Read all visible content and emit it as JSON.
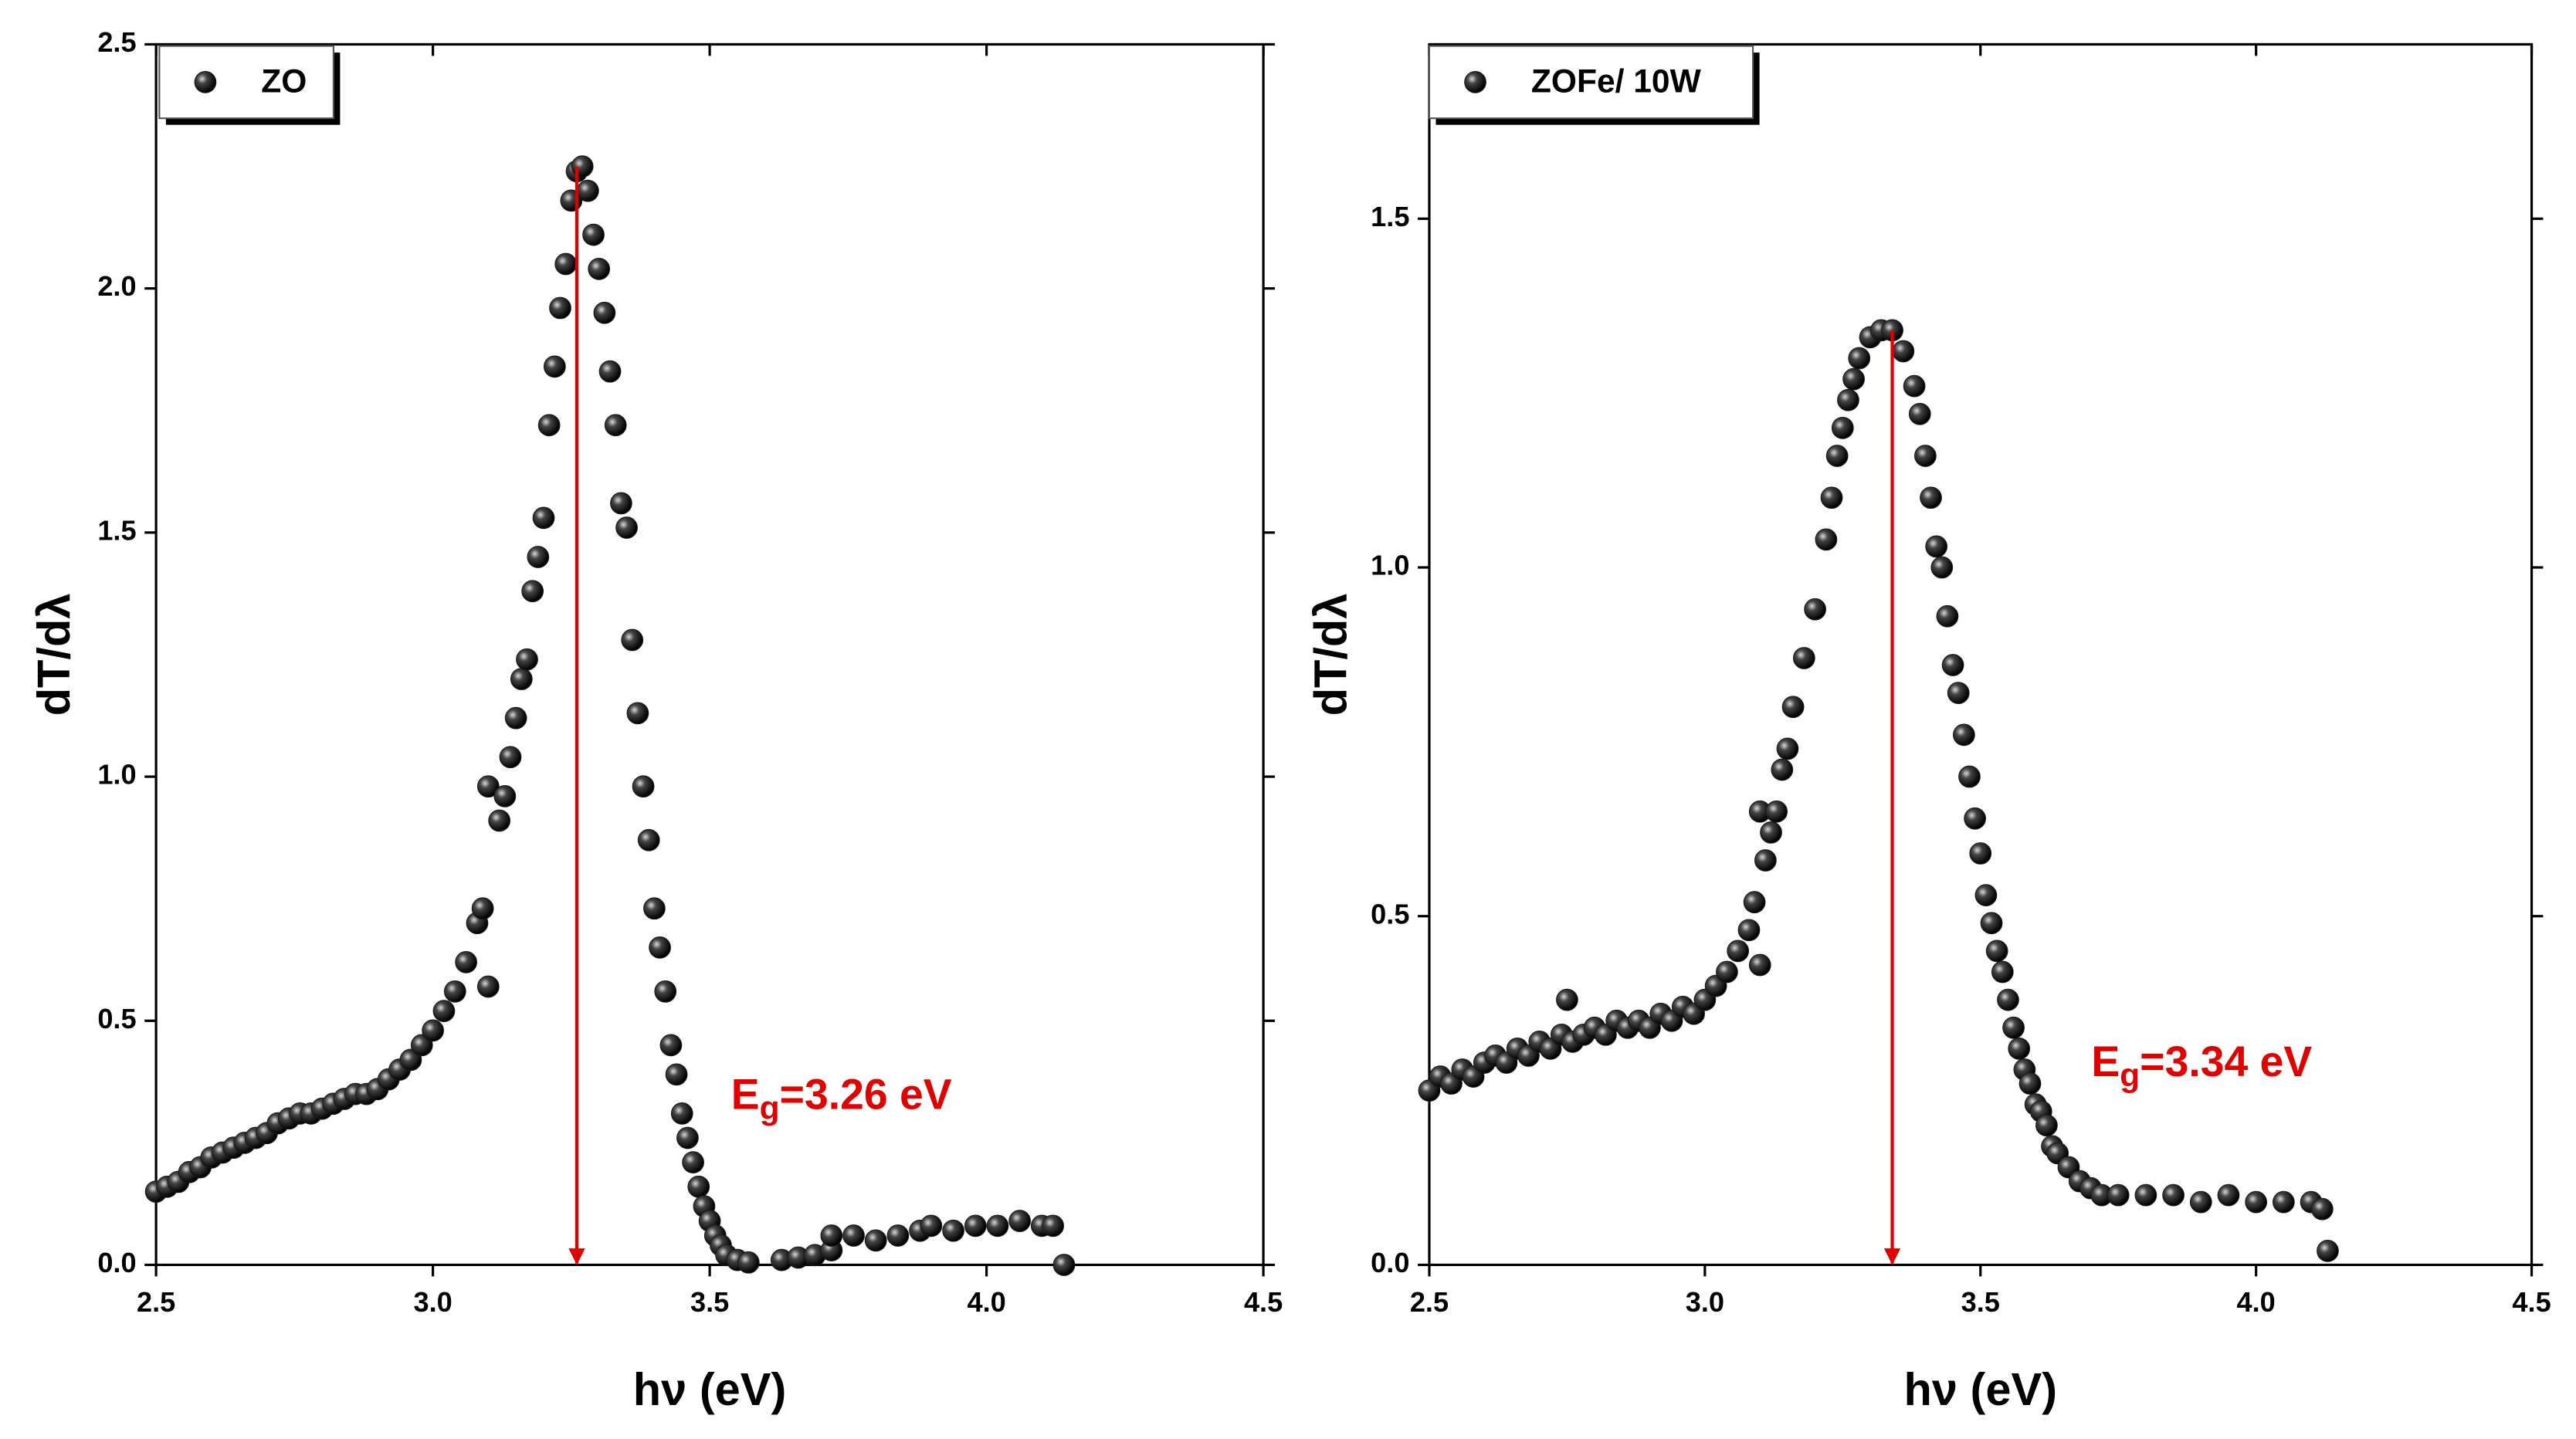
{
  "chart_data": [
    {
      "type": "scatter",
      "xlabel": "hν (eV)",
      "ylabel": "dT/dλ",
      "xlim": [
        2.5,
        4.5
      ],
      "ylim": [
        0,
        2.5
      ],
      "xticks": [
        2.5,
        {
          "value": 3,
          "label": "3.0"
        },
        3.5,
        {
          "value": 4,
          "label": "4.0"
        },
        4.5
      ],
      "yticks": [
        {
          "value": 0,
          "label": "0.0"
        },
        0.5,
        {
          "value": 1,
          "label": "1.0"
        },
        1.5,
        {
          "value": 2,
          "label": "2.0"
        },
        2.5
      ],
      "annotation": [
        "E",
        "g",
        "=3.26 eV"
      ],
      "arrow": {
        "x": 3.26,
        "y": 2.25,
        "color": "#e00000"
      },
      "x": [
        2.5,
        2.52,
        2.54,
        2.56,
        2.58,
        2.6,
        2.62,
        2.64,
        2.66,
        2.68,
        2.7,
        2.72,
        2.74,
        2.76,
        2.78,
        2.8,
        2.82,
        2.84,
        2.86,
        2.88,
        2.9,
        2.92,
        2.94,
        2.96,
        2.98,
        3.0,
        3.02,
        3.04,
        3.06,
        3.08,
        3.09,
        3.1,
        3.1,
        3.12,
        3.13,
        3.14,
        3.15,
        3.16,
        3.17,
        3.18,
        3.19,
        3.2,
        3.21,
        3.22,
        3.23,
        3.24,
        3.25,
        3.26,
        3.27,
        3.28,
        3.29,
        3.3,
        3.31,
        3.32,
        3.33,
        3.34,
        3.35,
        3.36,
        3.37,
        3.38,
        3.39,
        3.4,
        3.41,
        3.42,
        3.43,
        3.44,
        3.45,
        3.46,
        3.47,
        3.48,
        3.49,
        3.5,
        3.51,
        3.52,
        3.53,
        3.55,
        3.57,
        3.63,
        3.66,
        3.69,
        3.72,
        3.72,
        3.76,
        3.8,
        3.84,
        3.88,
        3.9,
        3.94,
        3.98,
        4.02,
        4.06,
        4.1,
        4.12,
        4.14
      ],
      "series": [
        {
          "name": "ZO",
          "color": "#1a1a1a",
          "values": [
            0.15,
            0.16,
            0.17,
            0.19,
            0.2,
            0.22,
            0.23,
            0.24,
            0.25,
            0.26,
            0.27,
            0.29,
            0.3,
            0.31,
            0.31,
            0.32,
            0.33,
            0.34,
            0.35,
            0.35,
            0.36,
            0.38,
            0.4,
            0.42,
            0.45,
            0.48,
            0.52,
            0.56,
            0.62,
            0.7,
            0.73,
            0.57,
            0.98,
            0.91,
            0.96,
            1.04,
            1.12,
            1.2,
            1.24,
            1.38,
            1.45,
            1.53,
            1.72,
            1.84,
            1.96,
            2.05,
            2.18,
            2.24,
            2.25,
            2.2,
            2.11,
            2.04,
            1.95,
            1.83,
            1.72,
            1.56,
            1.51,
            1.28,
            1.13,
            0.98,
            0.87,
            0.73,
            0.65,
            0.56,
            0.45,
            0.39,
            0.31,
            0.26,
            0.21,
            0.16,
            0.12,
            0.09,
            0.06,
            0.04,
            0.02,
            0.01,
            0.005,
            0.01,
            0.015,
            0.02,
            0.03,
            0.06,
            0.06,
            0.05,
            0.06,
            0.07,
            0.08,
            0.07,
            0.08,
            0.08,
            0.09,
            0.08,
            0.08,
            0.0
          ]
        }
      ]
    },
    {
      "type": "scatter",
      "xlabel": "hν (eV)",
      "ylabel": "dT/dλ",
      "xlim": [
        2.5,
        4.5
      ],
      "ylim": [
        0,
        1.75
      ],
      "xticks": [
        2.5,
        {
          "value": 3,
          "label": "3.0"
        },
        3.5,
        {
          "value": 4,
          "label": "4.0"
        },
        4.5
      ],
      "yticks": [
        {
          "value": 0,
          "label": "0.0"
        },
        0.5,
        {
          "value": 1,
          "label": "1.0"
        },
        1.5
      ],
      "annotation": [
        "E",
        "g",
        "=3.34 eV"
      ],
      "arrow": {
        "x": 3.34,
        "y": 1.34,
        "color": "#e00000"
      },
      "x": [
        2.5,
        2.52,
        2.54,
        2.56,
        2.58,
        2.6,
        2.62,
        2.64,
        2.66,
        2.68,
        2.7,
        2.72,
        2.74,
        2.75,
        2.76,
        2.78,
        2.8,
        2.82,
        2.84,
        2.86,
        2.88,
        2.9,
        2.92,
        2.94,
        2.96,
        2.98,
        3.0,
        3.02,
        3.04,
        3.06,
        3.08,
        3.09,
        3.1,
        3.1,
        3.11,
        3.12,
        3.13,
        3.14,
        3.15,
        3.16,
        3.18,
        3.2,
        3.22,
        3.23,
        3.24,
        3.25,
        3.26,
        3.27,
        3.28,
        3.3,
        3.32,
        3.34,
        3.36,
        3.38,
        3.39,
        3.4,
        3.41,
        3.42,
        3.43,
        3.44,
        3.45,
        3.46,
        3.47,
        3.48,
        3.49,
        3.5,
        3.51,
        3.52,
        3.53,
        3.54,
        3.55,
        3.56,
        3.57,
        3.58,
        3.59,
        3.6,
        3.61,
        3.62,
        3.63,
        3.64,
        3.66,
        3.68,
        3.7,
        3.72,
        3.75,
        3.8,
        3.85,
        3.9,
        3.95,
        4.0,
        4.05,
        4.1,
        4.12,
        4.13
      ],
      "series": [
        {
          "name": "ZOFe/ 10W",
          "color": "#1a1a1a",
          "values": [
            0.25,
            0.27,
            0.26,
            0.28,
            0.27,
            0.29,
            0.3,
            0.29,
            0.31,
            0.3,
            0.32,
            0.31,
            0.33,
            0.38,
            0.32,
            0.33,
            0.34,
            0.33,
            0.35,
            0.34,
            0.35,
            0.34,
            0.36,
            0.35,
            0.37,
            0.36,
            0.38,
            0.4,
            0.42,
            0.45,
            0.48,
            0.52,
            0.43,
            0.65,
            0.58,
            0.62,
            0.65,
            0.71,
            0.74,
            0.8,
            0.87,
            0.94,
            1.04,
            1.1,
            1.16,
            1.2,
            1.24,
            1.27,
            1.3,
            1.33,
            1.34,
            1.34,
            1.31,
            1.26,
            1.22,
            1.16,
            1.1,
            1.03,
            1.0,
            0.93,
            0.86,
            0.82,
            0.76,
            0.7,
            0.64,
            0.59,
            0.53,
            0.49,
            0.45,
            0.42,
            0.38,
            0.34,
            0.31,
            0.28,
            0.26,
            0.23,
            0.22,
            0.2,
            0.17,
            0.16,
            0.14,
            0.12,
            0.11,
            0.1,
            0.1,
            0.1,
            0.1,
            0.09,
            0.1,
            0.09,
            0.09,
            0.09,
            0.08,
            0.02
          ]
        }
      ]
    }
  ]
}
